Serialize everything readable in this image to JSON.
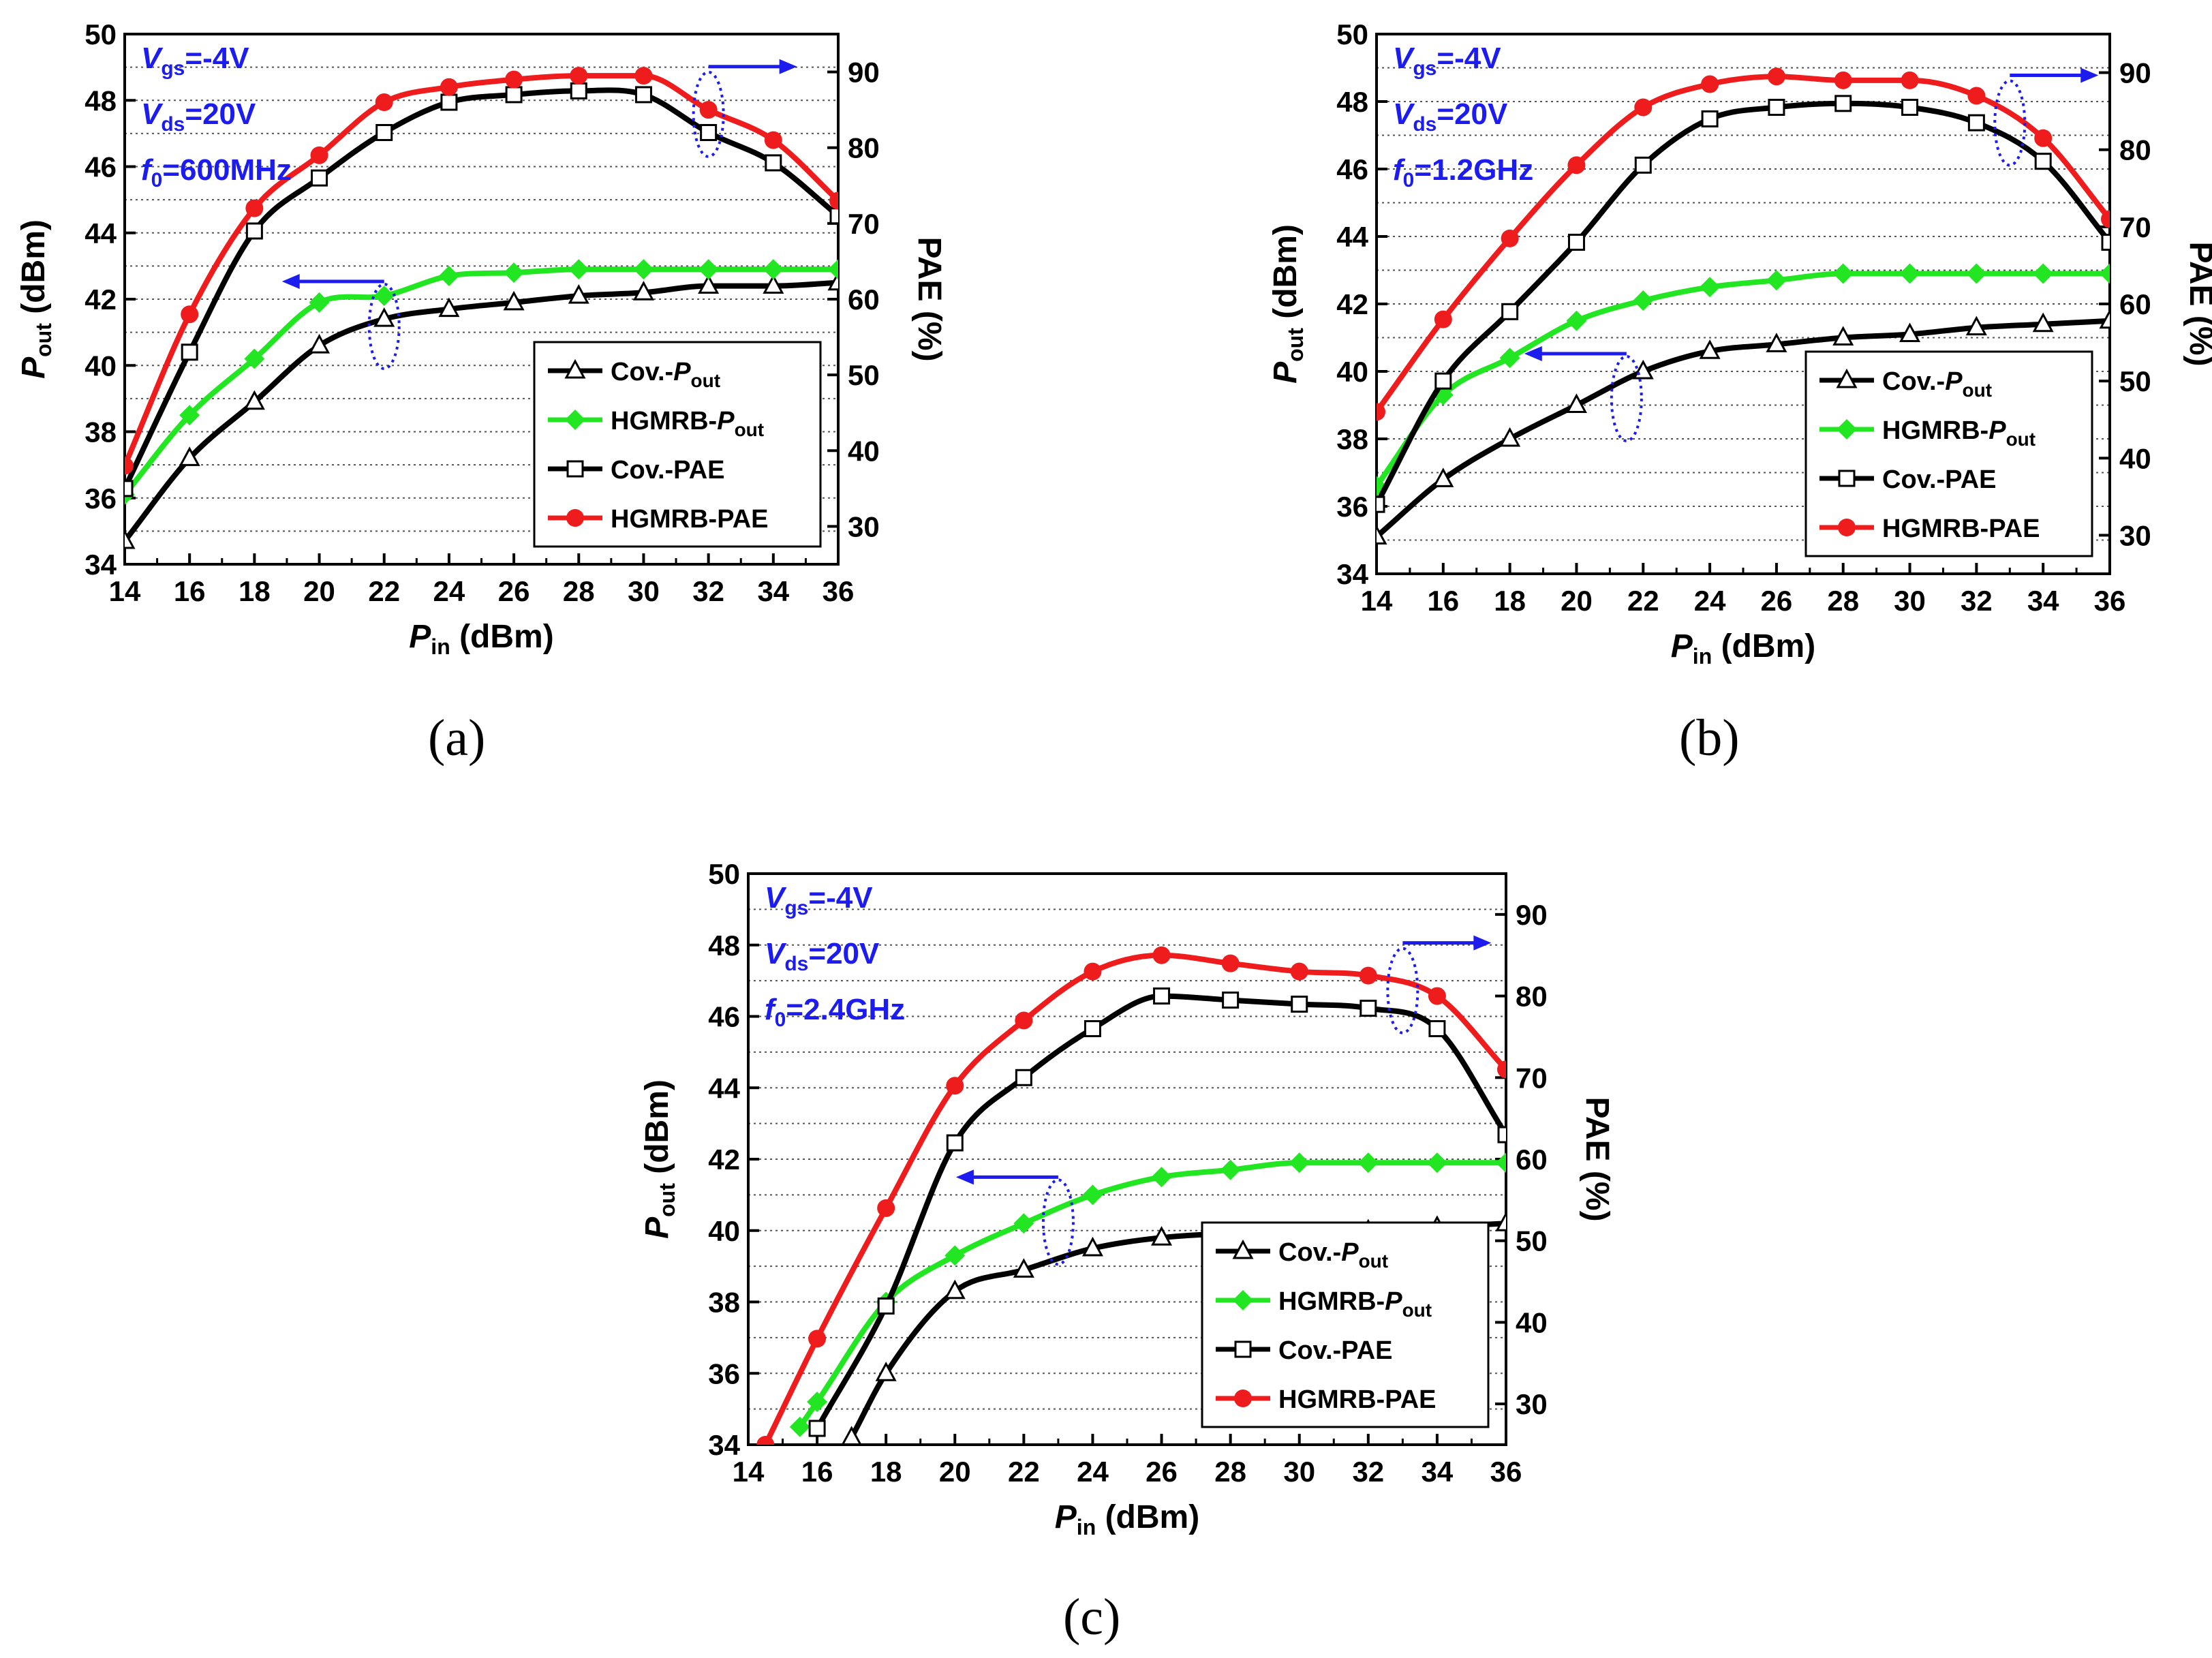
{
  "figure": {
    "panels": [
      {
        "label": "(a)",
        "annotation": {
          "vgs": "=-4V",
          "vds": "=20V",
          "f0": "=600MHz"
        }
      },
      {
        "label": "(b)",
        "annotation": {
          "vgs": "=-4V",
          "vds": "=20V",
          "f0": "=1.2GHz"
        }
      },
      {
        "label": "(c)",
        "annotation": {
          "vgs": "=-4V",
          "vds": "=20V",
          "f0": "=2.4GHz"
        }
      }
    ]
  },
  "colors": {
    "cov": "#000000",
    "hgmrb_pout": "#22e622",
    "hgmrb_pae": "#ee1c1c",
    "annotation": "#1c1cee",
    "grid": "#555555"
  },
  "chart_data": [
    {
      "type": "line",
      "panel": "(a)",
      "xlabel_main": "P",
      "xlabel_sub": "in",
      "xlabel_unit": " (dBm)",
      "ylabel_main": "P",
      "ylabel_sub": "out",
      "ylabel_unit": " (dBm)",
      "y2label": "PAE (%)",
      "xlim": [
        14,
        36
      ],
      "ylim": [
        34,
        50
      ],
      "y2lim": [
        25,
        95
      ],
      "xticks": [
        14,
        16,
        18,
        20,
        22,
        24,
        26,
        28,
        30,
        32,
        34,
        36
      ],
      "yticks": [
        34,
        36,
        38,
        40,
        42,
        44,
        46,
        48,
        50
      ],
      "y2ticks": [
        30,
        40,
        50,
        60,
        70,
        80,
        90
      ],
      "legend": "bottom-right",
      "series": [
        {
          "name": "Cov.-Pout",
          "legend_main": "Cov.-",
          "legend_italic": "P",
          "legend_sub": "out",
          "axis": "left",
          "marker": "triangle",
          "color": "#000000",
          "x": [
            14,
            16,
            18,
            20,
            22,
            24,
            26,
            28,
            30,
            32,
            34,
            36
          ],
          "values": [
            34.7,
            37.2,
            38.9,
            40.6,
            41.4,
            41.7,
            41.9,
            42.1,
            42.2,
            42.4,
            42.4,
            42.5
          ]
        },
        {
          "name": "HGMRB-Pout",
          "legend_main": "HGMRB-",
          "legend_italic": "P",
          "legend_sub": "out",
          "axis": "left",
          "marker": "diamond",
          "color": "#22e622",
          "x": [
            14,
            16,
            18,
            20,
            22,
            24,
            26,
            28,
            30,
            32,
            34,
            36
          ],
          "values": [
            36.1,
            38.5,
            40.2,
            41.9,
            42.1,
            42.7,
            42.8,
            42.9,
            42.9,
            42.9,
            42.9,
            42.9
          ]
        },
        {
          "name": "Cov.-PAE",
          "legend_main": "Cov.-PAE",
          "legend_italic": "",
          "legend_sub": "",
          "axis": "right",
          "marker": "square",
          "color": "#000000",
          "x": [
            14,
            16,
            18,
            20,
            22,
            24,
            26,
            28,
            30,
            32,
            34,
            36
          ],
          "values": [
            35,
            53,
            69,
            76,
            82,
            86,
            87,
            87.5,
            87,
            82,
            78,
            71
          ]
        },
        {
          "name": "HGMRB-PAE",
          "legend_main": "HGMRB-PAE",
          "legend_italic": "",
          "legend_sub": "",
          "axis": "right",
          "marker": "circle",
          "color": "#ee1c1c",
          "x": [
            14,
            16,
            18,
            20,
            22,
            24,
            26,
            28,
            30,
            32,
            34,
            36
          ],
          "values": [
            38,
            58,
            72,
            79,
            86,
            88,
            89,
            89.5,
            89.5,
            85,
            81,
            73
          ]
        }
      ],
      "annotation_arrows": [
        {
          "x": 22,
          "y": 42.0,
          "dir": "left",
          "axis": "left"
        },
        {
          "x": 32,
          "y": 88.0,
          "dir": "right",
          "axis": "right"
        }
      ]
    },
    {
      "type": "line",
      "panel": "(b)",
      "xlabel_main": "P",
      "xlabel_sub": "in",
      "xlabel_unit": " (dBm)",
      "ylabel_main": "P",
      "ylabel_sub": "out",
      "ylabel_unit": " (dBm)",
      "y2label": "PAE (%)",
      "xlim": [
        14,
        36
      ],
      "ylim": [
        34,
        50
      ],
      "y2lim": [
        25,
        95
      ],
      "xticks": [
        14,
        16,
        18,
        20,
        22,
        24,
        26,
        28,
        30,
        32,
        34,
        36
      ],
      "yticks": [
        34,
        36,
        38,
        40,
        42,
        44,
        46,
        48,
        50
      ],
      "y2ticks": [
        30,
        40,
        50,
        60,
        70,
        80,
        90
      ],
      "legend": "bottom-right",
      "series": [
        {
          "name": "Cov.-Pout",
          "legend_main": "Cov.-",
          "legend_italic": "P",
          "legend_sub": "out",
          "axis": "left",
          "marker": "triangle",
          "color": "#000000",
          "x": [
            14,
            16,
            18,
            20,
            22,
            24,
            26,
            28,
            30,
            32,
            34,
            36
          ],
          "values": [
            35.1,
            36.8,
            38.0,
            39.0,
            40.0,
            40.6,
            40.8,
            41.0,
            41.1,
            41.3,
            41.4,
            41.5
          ]
        },
        {
          "name": "HGMRB-Pout",
          "legend_main": "HGMRB-",
          "legend_italic": "P",
          "legend_sub": "out",
          "axis": "left",
          "marker": "diamond",
          "color": "#22e622",
          "x": [
            14,
            16,
            18,
            20,
            22,
            24,
            26,
            28,
            30,
            32,
            34,
            36
          ],
          "values": [
            36.6,
            39.3,
            40.4,
            41.5,
            42.1,
            42.5,
            42.7,
            42.9,
            42.9,
            42.9,
            42.9,
            42.9
          ]
        },
        {
          "name": "Cov.-PAE",
          "legend_main": "Cov.-PAE",
          "legend_italic": "",
          "legend_sub": "",
          "axis": "right",
          "marker": "square",
          "color": "#000000",
          "x": [
            14,
            16,
            18,
            20,
            22,
            24,
            26,
            28,
            30,
            32,
            34,
            36
          ],
          "values": [
            34,
            50,
            59,
            68,
            78,
            84,
            85.5,
            86,
            85.5,
            83.5,
            78.5,
            68
          ]
        },
        {
          "name": "HGMRB-PAE",
          "legend_main": "HGMRB-PAE",
          "legend_italic": "",
          "legend_sub": "",
          "axis": "right",
          "marker": "circle",
          "color": "#ee1c1c",
          "x": [
            14,
            16,
            18,
            20,
            22,
            24,
            26,
            28,
            30,
            32,
            34,
            36
          ],
          "values": [
            46,
            58,
            68.5,
            78,
            85.5,
            88.5,
            89.5,
            89,
            89,
            87,
            81.5,
            71
          ]
        }
      ],
      "annotation_arrows": [
        {
          "x": 21.5,
          "y": 40.0,
          "dir": "left",
          "axis": "left"
        },
        {
          "x": 33,
          "y": 87.0,
          "dir": "right",
          "axis": "right"
        }
      ]
    },
    {
      "type": "line",
      "panel": "(c)",
      "xlabel_main": "P",
      "xlabel_sub": "in",
      "xlabel_unit": " (dBm)",
      "ylabel_main": "P",
      "ylabel_sub": "out",
      "ylabel_unit": " (dBm)",
      "y2label": "PAE (%)",
      "xlim": [
        14,
        36
      ],
      "ylim": [
        34,
        50
      ],
      "y2lim": [
        25,
        95
      ],
      "xticks": [
        14,
        16,
        18,
        20,
        22,
        24,
        26,
        28,
        30,
        32,
        34,
        36
      ],
      "yticks": [
        34,
        36,
        38,
        40,
        42,
        44,
        46,
        48,
        50
      ],
      "y2ticks": [
        30,
        40,
        50,
        60,
        70,
        80,
        90
      ],
      "legend": "bottom-right",
      "series": [
        {
          "name": "Cov.-Pout",
          "legend_main": "Cov.-",
          "legend_italic": "P",
          "legend_sub": "out",
          "axis": "left",
          "marker": "triangle",
          "color": "#000000",
          "x": [
            17,
            18,
            20,
            22,
            24,
            26,
            28,
            30,
            32,
            34,
            36
          ],
          "values": [
            34.2,
            36.0,
            38.3,
            38.9,
            39.5,
            39.8,
            39.9,
            39.9,
            40.0,
            40.1,
            40.2
          ]
        },
        {
          "name": "HGMRB-Pout",
          "legend_main": "HGMRB-",
          "legend_italic": "P",
          "legend_sub": "out",
          "axis": "left",
          "marker": "diamond",
          "color": "#22e622",
          "x": [
            15.5,
            16,
            18,
            20,
            22,
            24,
            26,
            28,
            30,
            32,
            34,
            36
          ],
          "values": [
            34.5,
            35.2,
            38.0,
            39.3,
            40.2,
            41.0,
            41.5,
            41.7,
            41.9,
            41.9,
            41.9,
            41.9
          ]
        },
        {
          "name": "Cov.-PAE",
          "legend_main": "Cov.-PAE",
          "legend_italic": "",
          "legend_sub": "",
          "axis": "right",
          "marker": "square",
          "color": "#000000",
          "x": [
            16,
            18,
            20,
            22,
            24,
            26,
            28,
            30,
            32,
            34,
            36
          ],
          "values": [
            27,
            42,
            62,
            70,
            76,
            80,
            79.5,
            79,
            78.5,
            76,
            63
          ]
        },
        {
          "name": "HGMRB-PAE",
          "legend_main": "HGMRB-PAE",
          "legend_italic": "",
          "legend_sub": "",
          "axis": "right",
          "marker": "circle",
          "color": "#ee1c1c",
          "x": [
            14.5,
            16,
            18,
            20,
            22,
            24,
            26,
            28,
            30,
            32,
            34,
            36
          ],
          "values": [
            25,
            38,
            54,
            69,
            77,
            83,
            85,
            84,
            83,
            82.5,
            80,
            71
          ]
        }
      ],
      "annotation_arrows": [
        {
          "x": 23,
          "y": 41.0,
          "dir": "left",
          "axis": "left"
        },
        {
          "x": 33,
          "y": 84.0,
          "dir": "right",
          "axis": "right"
        }
      ]
    }
  ]
}
